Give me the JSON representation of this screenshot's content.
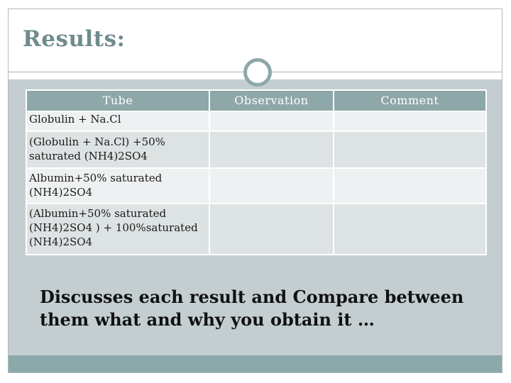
{
  "slide": {
    "title": "Results:"
  },
  "table": {
    "headers": [
      "Tube",
      "Observation",
      "Comment"
    ],
    "rows": [
      {
        "tube": "Globulin + Na.Cl",
        "observation": "",
        "comment": ""
      },
      {
        "tube": " (Globulin + Na.Cl) +50% saturated (NH4)2SO4",
        "observation": "",
        "comment": ""
      },
      {
        "tube": "Albumin+50% saturated (NH4)2SO4",
        "observation": "",
        "comment": ""
      },
      {
        "tube": "(Albumin+50% saturated (NH4)2SO4 ) + 100%saturated (NH4)2SO4",
        "observation": "",
        "comment": ""
      }
    ]
  },
  "discussion": " Discusses each result and Compare between them what and why you obtain it …",
  "colors": {
    "title": "#6f8b8d",
    "accent": "#8ea7a8",
    "panel": "#c4ced0",
    "footer": "#8ba9aa"
  }
}
